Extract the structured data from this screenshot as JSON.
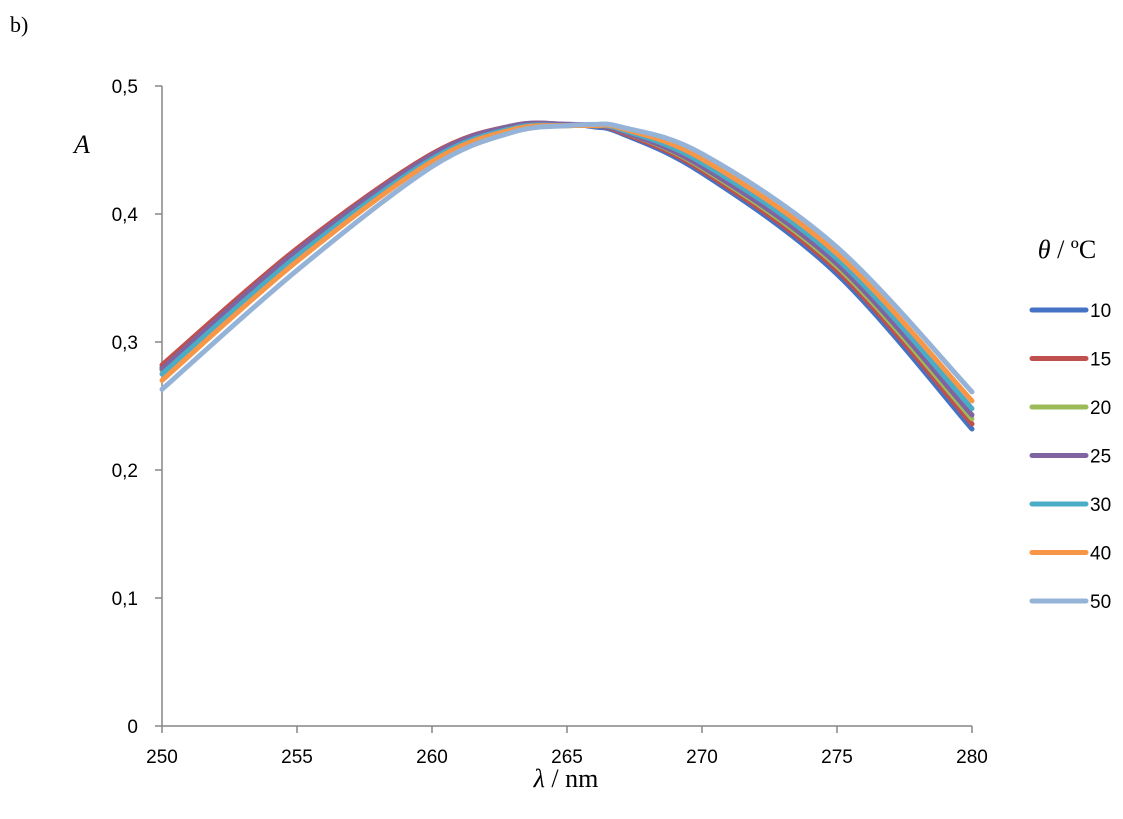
{
  "panel_label": "b)",
  "chart_data": {
    "type": "line",
    "title": "",
    "xlabel_symbol": "λ",
    "xlabel_unit": " / nm",
    "ylabel": "A",
    "xlim": [
      250,
      280
    ],
    "ylim": [
      0,
      0.5
    ],
    "x_ticks": [
      "250",
      "255",
      "260",
      "265",
      "270",
      "275",
      "280"
    ],
    "y_ticks": [
      "0",
      "0,1",
      "0,2",
      "0,3",
      "0,4",
      "0,5"
    ],
    "legend_title_symbol": "θ",
    "legend_title_unit": " / ºC",
    "legend_position": "right",
    "x": [
      250,
      255,
      260,
      263,
      265,
      266,
      267,
      270,
      275,
      280
    ],
    "series": [
      {
        "name": "10",
        "color": "#4472C4",
        "values": [
          0.28,
          0.372,
          0.446,
          0.468,
          0.47,
          0.468,
          0.463,
          0.432,
          0.353,
          0.232
        ]
      },
      {
        "name": "15",
        "color": "#C0504D",
        "values": [
          0.282,
          0.373,
          0.447,
          0.469,
          0.47,
          0.469,
          0.464,
          0.434,
          0.356,
          0.236
        ]
      },
      {
        "name": "20",
        "color": "#9BBB59",
        "values": [
          0.278,
          0.37,
          0.444,
          0.467,
          0.469,
          0.469,
          0.465,
          0.436,
          0.359,
          0.24
        ]
      },
      {
        "name": "25",
        "color": "#8064A2",
        "values": [
          0.279,
          0.371,
          0.446,
          0.469,
          0.47,
          0.469,
          0.465,
          0.437,
          0.361,
          0.243
        ]
      },
      {
        "name": "30",
        "color": "#4BACC6",
        "values": [
          0.275,
          0.367,
          0.443,
          0.467,
          0.469,
          0.469,
          0.466,
          0.44,
          0.365,
          0.248
        ]
      },
      {
        "name": "40",
        "color": "#F79646",
        "values": [
          0.27,
          0.363,
          0.441,
          0.466,
          0.469,
          0.469,
          0.467,
          0.443,
          0.369,
          0.254
        ]
      },
      {
        "name": "50",
        "color": "#95B3D7",
        "values": [
          0.263,
          0.356,
          0.437,
          0.464,
          0.469,
          0.47,
          0.468,
          0.447,
          0.374,
          0.261
        ]
      }
    ]
  }
}
